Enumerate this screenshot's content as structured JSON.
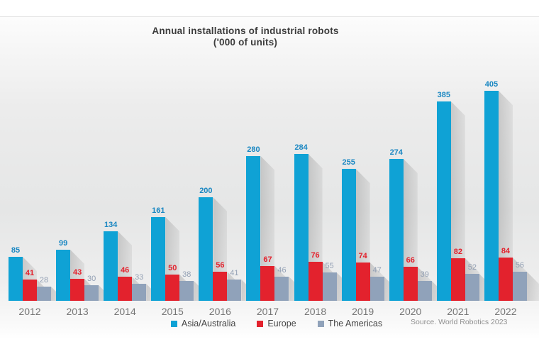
{
  "title": {
    "line1": "Annual installations of industrial robots",
    "line2": "('000 of units)"
  },
  "source": "Source. World Robotics 2023",
  "chart_data": {
    "type": "bar",
    "title": "Annual installations of industrial robots ('000 of units)",
    "xlabel": "",
    "ylabel": "",
    "ylim": [
      0,
      440
    ],
    "grid": false,
    "axis_lines": false,
    "data_labels": true,
    "legend_position": "bottom",
    "background": "light-gray-gradient",
    "categories": [
      "2012",
      "2013",
      "2014",
      "2015",
      "2016",
      "2017",
      "2018",
      "2019",
      "2020",
      "2021",
      "2022"
    ],
    "series": [
      {
        "name": "Asia/Australia",
        "color": "#0FA2D5",
        "label_color": "#1A87C2",
        "label_bold": true,
        "values": [
          85,
          99,
          134,
          161,
          200,
          280,
          284,
          255,
          274,
          385,
          405
        ]
      },
      {
        "name": "Europe",
        "color": "#E3222D",
        "label_color": "#E3222D",
        "label_bold": true,
        "values": [
          41,
          43,
          46,
          50,
          56,
          67,
          76,
          74,
          66,
          82,
          84
        ]
      },
      {
        "name": "The Americas",
        "color": "#90A2BA",
        "label_color": "#93A0B4",
        "label_bold": false,
        "values": [
          28,
          30,
          33,
          38,
          41,
          46,
          55,
          47,
          39,
          52,
          56
        ]
      }
    ]
  }
}
